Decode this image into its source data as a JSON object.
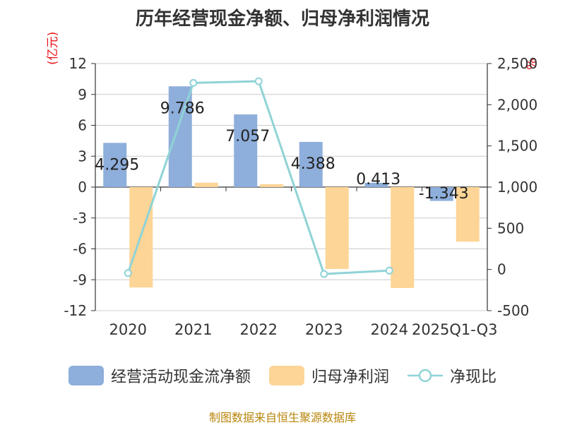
{
  "chart_data": {
    "type": "bar",
    "title": "历年经营现金净额、归母净利润情况",
    "categories": [
      "2020",
      "2021",
      "2022",
      "2023",
      "2024",
      "2025Q1-Q3"
    ],
    "y_left_unit": "(亿元)",
    "y_right_unit": "%",
    "y_left_range": [
      -12,
      12
    ],
    "y_left_ticks": [
      "12",
      "9",
      "6",
      "3",
      "0",
      "-3",
      "-6",
      "-9",
      "-12"
    ],
    "y_right_range": [
      -500,
      2500
    ],
    "y_right_ticks": [
      "2,500",
      "2,000",
      "1,500",
      "1,000",
      "500",
      "0",
      "-500"
    ],
    "series": [
      {
        "name": "经营活动现金流净额",
        "type": "bar",
        "axis": "left",
        "color": "#8eaedb",
        "values": [
          4.295,
          9.786,
          7.057,
          4.388,
          0.413,
          -1.343
        ],
        "labels": [
          "4.295",
          "9.786",
          "7.057",
          "4.388",
          "0.413",
          "-1.343"
        ]
      },
      {
        "name": "归母净利润",
        "type": "bar",
        "axis": "left",
        "color": "#fdd596",
        "values": [
          -9.75,
          0.42,
          0.28,
          -7.95,
          -9.8,
          -5.3
        ]
      },
      {
        "name": "净现比",
        "type": "line",
        "axis": "right",
        "color": "#8fd3d6",
        "values": [
          -44,
          2265,
          2285,
          -55,
          -14,
          null
        ]
      }
    ],
    "legend_position": "bottom",
    "grid": true
  },
  "footer": "制图数据来自恒生聚源数据库"
}
